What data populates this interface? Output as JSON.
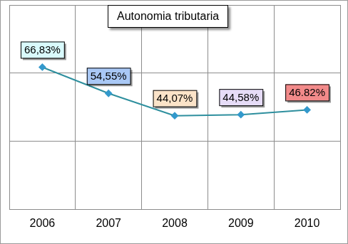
{
  "chart_data": {
    "type": "line",
    "title": "Autonomia tributaria",
    "categories": [
      "2006",
      "2007",
      "2008",
      "2009",
      "2010"
    ],
    "values": [
      66.83,
      54.55,
      44.07,
      44.58,
      46.82
    ],
    "value_labels": [
      "66,83%",
      "54,55%",
      "44,07%",
      "44,58%",
      "46.82%"
    ],
    "color": "#2e8f9e",
    "marker": "diamond",
    "ylim": [
      0,
      96
    ],
    "yticks": [
      0,
      32,
      64,
      96
    ],
    "grid": true,
    "data_labels": true,
    "tick_labels": "x"
  }
}
